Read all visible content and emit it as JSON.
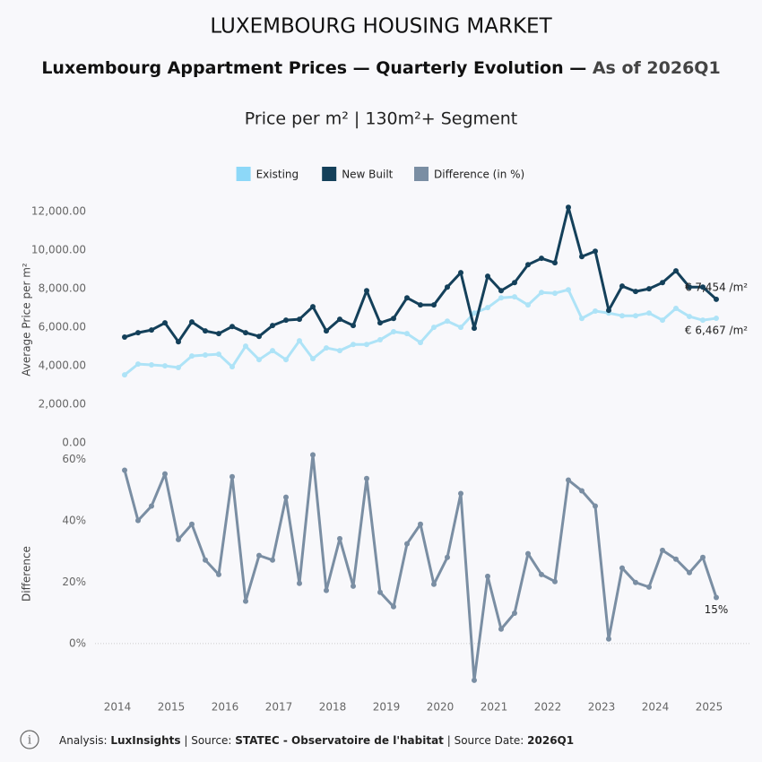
{
  "header": {
    "title": "LUXEMBOURG HOUSING MARKET",
    "subtitle": "Luxembourg Appartment Prices — Quarterly Evolution — ",
    "subtitle_highlight": "As of 2026Q1",
    "caption": "Price per m² | 130m²+ Segment"
  },
  "chart_data": [
    {
      "type": "line",
      "ylabel": "Average Price per m²",
      "x": [
        2014,
        2014.25,
        2014.5,
        2014.75,
        2015,
        2015.25,
        2015.5,
        2015.75,
        2016,
        2016.25,
        2016.5,
        2016.75,
        2017,
        2017.25,
        2017.5,
        2017.75,
        2018,
        2018.25,
        2018.5,
        2018.75,
        2019,
        2019.25,
        2019.5,
        2019.75,
        2020,
        2020.25,
        2020.5,
        2020.75,
        2021,
        2021.25,
        2021.5,
        2021.75,
        2022,
        2022.25,
        2022.5,
        2022.75,
        2023,
        2023.25,
        2023.5,
        2023.75,
        2024,
        2024.25,
        2024.5,
        2024.75,
        2025
      ],
      "xlim": [
        2013.7,
        2025.45
      ],
      "ylim": [
        0,
        12800
      ],
      "yticks": [
        {
          "value": 0,
          "label": "0.00"
        },
        {
          "value": 2000,
          "label": "2,000.00"
        },
        {
          "value": 4000,
          "label": "4,000.00"
        },
        {
          "value": 6000,
          "label": "6,000.00"
        },
        {
          "value": 8000,
          "label": "8,000.00"
        },
        {
          "value": 10000,
          "label": "10,000.00"
        },
        {
          "value": 12000,
          "label": "12,000.00"
        }
      ],
      "series": [
        {
          "name": "Existing",
          "color": "#aee3f7",
          "legend_color": "#8dd8f8",
          "values": [
            3530,
            4090,
            4050,
            4000,
            3910,
            4510,
            4560,
            4600,
            3950,
            5020,
            4320,
            4790,
            4320,
            5300,
            4370,
            4930,
            4790,
            5110,
            5110,
            5350,
            5770,
            5670,
            5210,
            6000,
            6320,
            6000,
            6740,
            7020,
            7530,
            7580,
            7160,
            7810,
            7770,
            7950,
            6460,
            6840,
            6740,
            6600,
            6600,
            6740,
            6370,
            6980,
            6560,
            6370,
            6467
          ],
          "value_labels": [
            null,
            null,
            null,
            null,
            null,
            null,
            null,
            null,
            null,
            null,
            null,
            null,
            null,
            null,
            null,
            null,
            null,
            null,
            null,
            null,
            null,
            null,
            null,
            null,
            null,
            null,
            null,
            null,
            null,
            null,
            null,
            null,
            null,
            null,
            null,
            null,
            null,
            null,
            null,
            null,
            null,
            null,
            null,
            null,
            "€ 6,467 /m²"
          ]
        },
        {
          "name": "New Built",
          "color": "#14405a",
          "legend_color": "#14405a",
          "values": [
            5490,
            5720,
            5860,
            6230,
            5250,
            6280,
            5810,
            5670,
            6040,
            5720,
            5530,
            6090,
            6370,
            6420,
            7070,
            5810,
            6420,
            6090,
            7900,
            6230,
            6460,
            7530,
            7160,
            7160,
            8090,
            8840,
            5950,
            8650,
            7900,
            8320,
            9250,
            9580,
            9350,
            12230,
            9670,
            9950,
            6880,
            8140,
            7860,
            8000,
            8320,
            8930,
            8090,
            8090,
            7454
          ],
          "value_labels": [
            null,
            null,
            null,
            null,
            null,
            null,
            null,
            null,
            null,
            null,
            null,
            null,
            null,
            null,
            null,
            null,
            null,
            null,
            null,
            null,
            null,
            null,
            null,
            null,
            null,
            null,
            null,
            null,
            null,
            null,
            null,
            null,
            null,
            null,
            null,
            null,
            null,
            null,
            null,
            null,
            null,
            null,
            null,
            null,
            "€ 7,454 /m²"
          ]
        }
      ]
    },
    {
      "type": "line",
      "ylabel": "Difference",
      "zero_line": true,
      "x": [
        2014,
        2014.25,
        2014.5,
        2014.75,
        2015,
        2015.25,
        2015.5,
        2015.75,
        2016,
        2016.25,
        2016.5,
        2016.75,
        2017,
        2017.25,
        2017.5,
        2017.75,
        2018,
        2018.25,
        2018.5,
        2018.75,
        2019,
        2019.25,
        2019.5,
        2019.75,
        2020,
        2020.25,
        2020.5,
        2020.75,
        2021,
        2021.25,
        2021.5,
        2021.75,
        2022,
        2022.25,
        2022.5,
        2022.75,
        2023,
        2023.25,
        2023.5,
        2023.75,
        2024,
        2024.25,
        2024.5,
        2024.75,
        2025
      ],
      "xlim": [
        2013.7,
        2025.45
      ],
      "xticks": [
        2014,
        2015,
        2016,
        2017,
        2018,
        2019,
        2020,
        2021,
        2022,
        2023,
        2024,
        2025
      ],
      "ylim": [
        -17,
        62.5
      ],
      "yticks": [
        {
          "value": 0,
          "label": "0%"
        },
        {
          "value": 20,
          "label": "20%"
        },
        {
          "value": 40,
          "label": "40%"
        },
        {
          "value": 60,
          "label": "60%"
        }
      ],
      "series": [
        {
          "name": "Difference (in %)",
          "color": "#7a8ea3",
          "legend_color": "#7a8ea3",
          "values": [
            56.5,
            40.1,
            44.8,
            55.3,
            33.9,
            38.9,
            27.2,
            22.5,
            54.4,
            13.8,
            28.7,
            27.2,
            47.7,
            19.6,
            61.5,
            17.3,
            34.2,
            18.7,
            53.8,
            16.7,
            12.0,
            32.5,
            38.9,
            19.3,
            28.1,
            48.9,
            -12.0,
            21.9,
            4.7,
            9.9,
            29.3,
            22.5,
            20.2,
            53.3,
            49.8,
            44.8,
            1.5,
            24.6,
            19.9,
            18.4,
            30.4,
            27.5,
            23.1,
            28.1,
            15
          ],
          "value_labels": [
            null,
            null,
            null,
            null,
            null,
            null,
            null,
            null,
            null,
            null,
            null,
            null,
            null,
            null,
            null,
            null,
            null,
            null,
            null,
            null,
            null,
            null,
            null,
            null,
            null,
            null,
            null,
            null,
            null,
            null,
            null,
            null,
            null,
            null,
            null,
            null,
            null,
            null,
            null,
            null,
            null,
            null,
            null,
            null,
            "15%"
          ]
        }
      ]
    }
  ],
  "footer": {
    "prefix1": "Analysis: ",
    "analyst": "LuxInsights",
    "prefix2": " | Source: ",
    "source": "STATEC - Observatoire de l'habitat",
    "prefix3": " | Source Date: ",
    "date": "2026Q1"
  }
}
